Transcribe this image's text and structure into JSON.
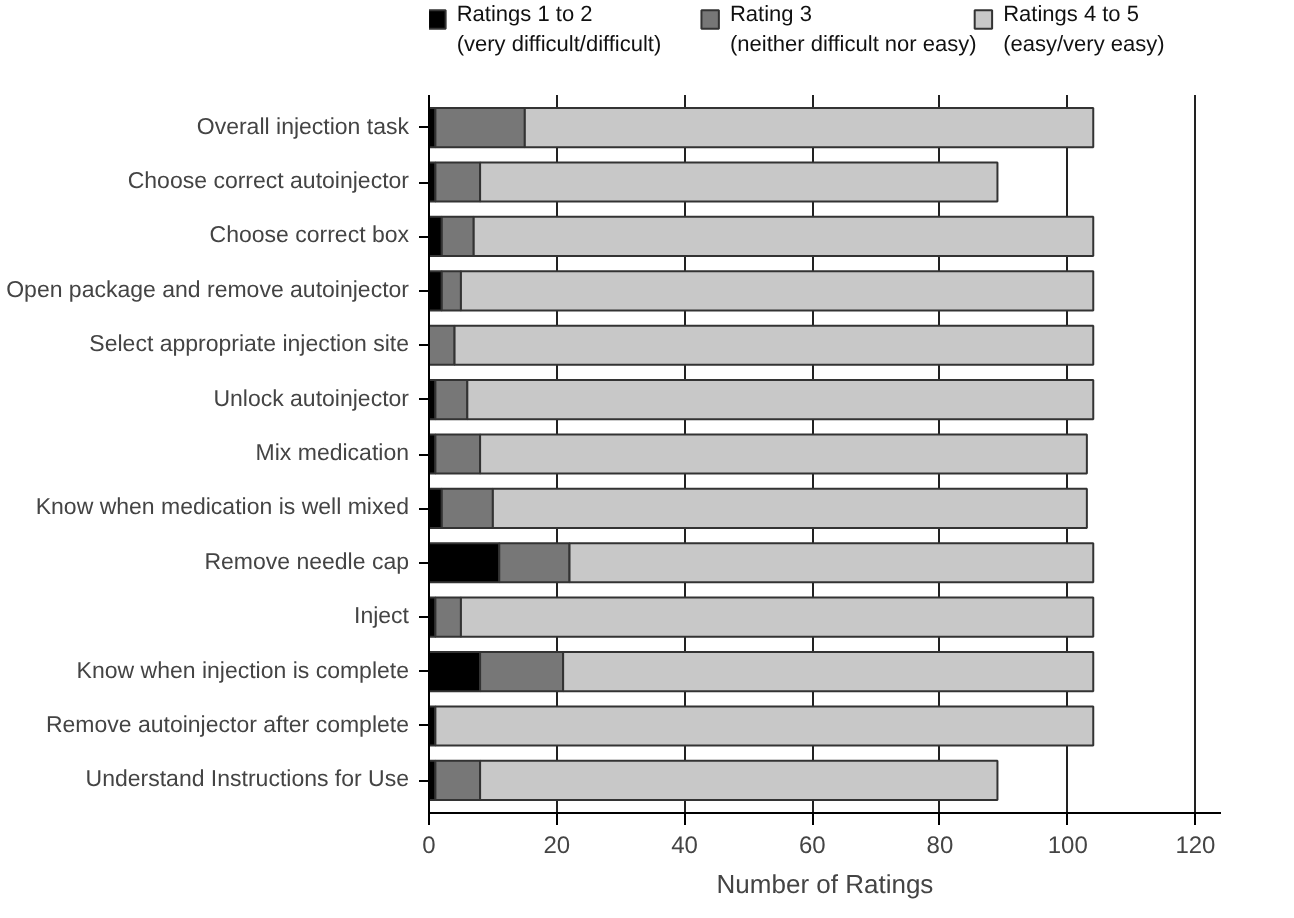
{
  "chart_data": {
    "type": "bar",
    "orientation": "horizontal",
    "stacked": true,
    "xlabel": "Number of Ratings",
    "categories": [
      "Overall injection task",
      "Choose correct autoinjector",
      "Choose correct box",
      "Open package and remove autoinjector",
      "Select appropriate injection site",
      "Unlock autoinjector",
      "Mix medication",
      "Know when medication is well mixed",
      "Remove needle cap",
      "Inject",
      "Know when injection is complete",
      "Remove autoinjector after complete",
      "Understand Instructions for Use"
    ],
    "series": [
      {
        "name": "Ratings 1 to 2\n(very difficult/difficult)",
        "color": "#000000",
        "values": [
          1,
          1,
          2,
          2,
          0,
          1,
          1,
          2,
          11,
          1,
          8,
          1,
          1
        ]
      },
      {
        "name": "Rating 3\n(neither difficult nor easy)",
        "color": "#777777",
        "values": [
          14,
          7,
          5,
          3,
          4,
          5,
          7,
          8,
          11,
          4,
          13,
          0,
          7
        ]
      },
      {
        "name": "Ratings 4 to 5\n(easy/very easy)",
        "color": "#c8c8c8",
        "values": [
          89,
          81,
          97,
          99,
          100,
          98,
          95,
          93,
          82,
          99,
          83,
          103,
          81
        ]
      }
    ],
    "xlim": [
      0,
      124
    ],
    "xticks": [
      0,
      20,
      40,
      60,
      80,
      100,
      120
    ],
    "grid": "x",
    "legend": "top"
  }
}
